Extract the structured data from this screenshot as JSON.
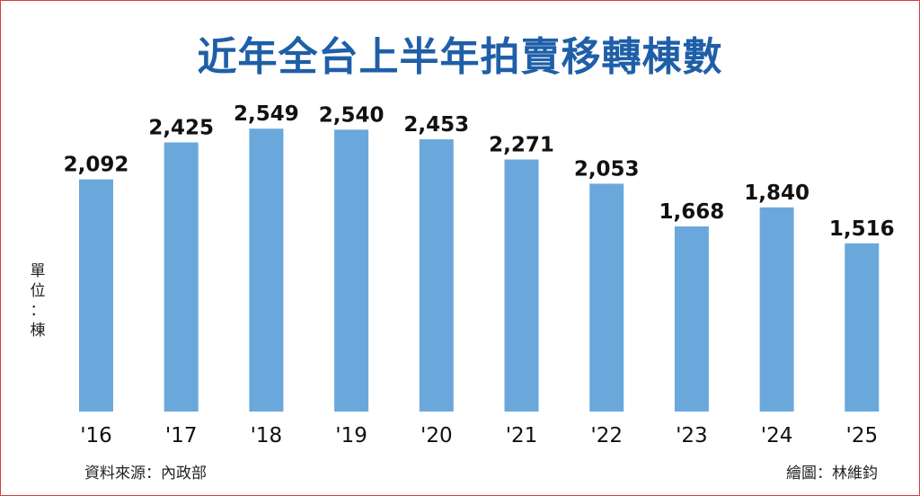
{
  "chart_data": {
    "type": "bar",
    "title": "近年全台上半年拍賣移轉棟數",
    "unit_label": [
      "單",
      "位",
      "：",
      "棟"
    ],
    "categories": [
      "'16",
      "'17",
      "'18",
      "'19",
      "'20",
      "'21",
      "'22",
      "'23",
      "'24",
      "'25"
    ],
    "values": [
      2092,
      2425,
      2549,
      2540,
      2453,
      2271,
      2053,
      1668,
      1840,
      1516
    ],
    "value_labels": [
      "2,092",
      "2,425",
      "2,549",
      "2,540",
      "2,453",
      "2,271",
      "2,053",
      "1,668",
      "1,840",
      "1,516"
    ],
    "ylim": [
      0,
      2800
    ],
    "grid": false,
    "bar_color": "#6aa8dc"
  },
  "footer": {
    "source": "資料來源：內政部",
    "credit": "繪圖：林維鈞"
  }
}
